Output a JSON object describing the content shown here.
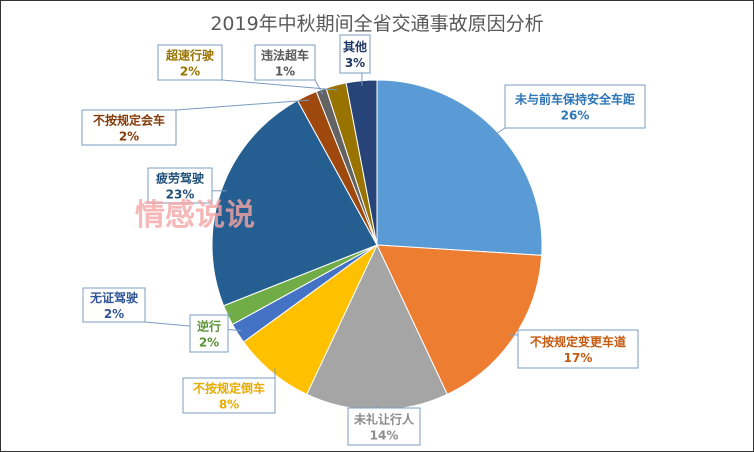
{
  "chart_data": {
    "type": "pie",
    "title": "2019年中秋期间全省交通事故原因分析",
    "start": "12 o'clock",
    "direction": "clockwise",
    "slices": [
      {
        "label": "未与前车保持安全车距",
        "value": 26,
        "display": "26%",
        "color": "#5b9bd5",
        "text_color": "#2e75b6"
      },
      {
        "label": "不按规定变更车道",
        "value": 17,
        "display": "17%",
        "color": "#ed7d31",
        "text_color": "#c55a11"
      },
      {
        "label": "未礼让行人",
        "value": 14,
        "display": "14%",
        "color": "#a5a5a5",
        "text_color": "#8c8c8c"
      },
      {
        "label": "不按规定倒车",
        "value": 8,
        "display": "8%",
        "color": "#ffc000",
        "text_color": "#e6ac00"
      },
      {
        "label": "无证驾驶",
        "value": 2,
        "display": "2%",
        "color": "#4472c4",
        "text_color": "#2f5597"
      },
      {
        "label": "逆行",
        "value": 2,
        "display": "2%",
        "color": "#70ad47",
        "text_color": "#5b9337"
      },
      {
        "label": "疲劳驾驶",
        "value": 23,
        "display": "23%",
        "color": "#255e91",
        "text_color": "#1f4e79"
      },
      {
        "label": "不按规定会车",
        "value": 2,
        "display": "2%",
        "color": "#9e480e",
        "text_color": "#843c0c"
      },
      {
        "label": "违法超车",
        "value": 1,
        "display": "1%",
        "color": "#636363",
        "text_color": "#595959"
      },
      {
        "label": "超速行驶",
        "value": 2,
        "display": "2%",
        "color": "#997300",
        "text_color": "#997300"
      },
      {
        "label": "其他",
        "value": 3,
        "display": "3%",
        "color": "#264478",
        "text_color": "#203864"
      }
    ],
    "callout_border_color": "#7a9cc0",
    "legend": "none"
  },
  "watermark": {
    "text": "情感说说",
    "color": "#f4a6a6"
  }
}
